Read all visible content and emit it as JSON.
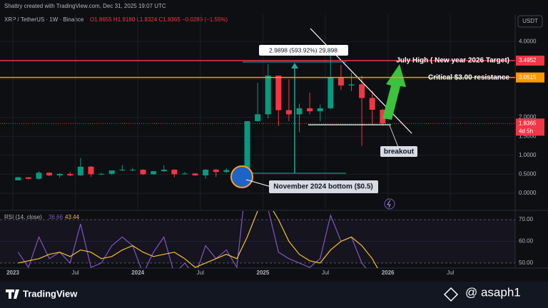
{
  "header": {
    "credit": "Shattry created with TradingView.com, Dec 31, 2025 19:07 UTC",
    "symbol": "XRP / TetherUS · 1W · Binance",
    "legend": "O1.8655 H1.9180 L1.8324 C1.8365 −0.0289 (−1.55%)",
    "currency": "USDT"
  },
  "footer": {
    "brand": "TradingView",
    "watermark": "@ asaph1"
  },
  "chart_data": {
    "type": "candlestick",
    "x": [
      "2023-01",
      "2023-02",
      "2023-03",
      "2023-04",
      "2023-05",
      "2023-06",
      "2023-07",
      "2023-08",
      "2023-09",
      "2023-10",
      "2023-11",
      "2023-12",
      "2024-01",
      "2024-02",
      "2024-03",
      "2024-04",
      "2024-05",
      "2024-06",
      "2024-07",
      "2024-08",
      "2024-09",
      "2024-10",
      "2024-11",
      "2024-12",
      "2025-01",
      "2025-02",
      "2025-03",
      "2025-04",
      "2025-05",
      "2025-06",
      "2025-07",
      "2025-08",
      "2025-09",
      "2025-10",
      "2025-11",
      "2025-12"
    ],
    "open": [
      0.34,
      0.42,
      0.38,
      0.54,
      0.47,
      0.51,
      0.47,
      0.7,
      0.5,
      0.51,
      0.6,
      0.62,
      0.62,
      0.5,
      0.58,
      0.62,
      0.5,
      0.52,
      0.47,
      0.62,
      0.56,
      0.61,
      0.52,
      1.9,
      2.08,
      3.1,
      2.19,
      2.08,
      2.24,
      2.16,
      2.24,
      3.06,
      2.84,
      2.87,
      2.51,
      2.2
    ],
    "high": [
      0.43,
      0.42,
      0.58,
      0.55,
      0.53,
      0.56,
      0.93,
      0.72,
      0.54,
      0.58,
      0.74,
      0.67,
      0.63,
      0.59,
      0.74,
      0.63,
      0.56,
      0.53,
      0.64,
      0.64,
      0.66,
      0.61,
      1.9,
      2.91,
      3.4,
      3.1,
      3.0,
      2.36,
      2.65,
      2.34,
      3.66,
      3.38,
      3.18,
      3.1,
      2.7,
      2.23
    ],
    "low": [
      0.34,
      0.36,
      0.36,
      0.45,
      0.41,
      0.45,
      0.46,
      0.43,
      0.48,
      0.48,
      0.59,
      0.58,
      0.48,
      0.49,
      0.56,
      0.42,
      0.49,
      0.46,
      0.38,
      0.43,
      0.53,
      0.5,
      0.49,
      1.89,
      1.97,
      1.77,
      1.9,
      1.61,
      2.08,
      1.9,
      2.21,
      2.72,
      2.69,
      1.25,
      1.82,
      1.78
    ],
    "close": [
      0.42,
      0.38,
      0.54,
      0.47,
      0.51,
      0.47,
      0.7,
      0.5,
      0.51,
      0.6,
      0.62,
      0.62,
      0.5,
      0.58,
      0.62,
      0.5,
      0.52,
      0.47,
      0.62,
      0.56,
      0.61,
      0.52,
      1.9,
      2.08,
      3.1,
      2.19,
      2.08,
      2.24,
      2.16,
      2.24,
      3.06,
      2.84,
      2.87,
      2.51,
      2.2,
      1.8365
    ],
    "up_color": "#089981",
    "down_color": "#f23645",
    "ylim": [
      -0.545,
      4.718
    ],
    "yticks": [
      {
        "value": 0,
        "label": "0.0000"
      },
      {
        "value": 0.5,
        "label": "0.5000"
      },
      {
        "value": 1,
        "label": "1.0000"
      },
      {
        "value": 1.5,
        "label": "1.5000"
      },
      {
        "value": 2,
        "label": "2.0000"
      },
      {
        "value": 3,
        "label": "3.0000"
      },
      {
        "value": 4,
        "label": "4.0000"
      }
    ],
    "xticks": [
      {
        "value": "2023-01",
        "label": "2023"
      },
      {
        "value": "2023-07",
        "label": "Jul"
      },
      {
        "value": "2024-01",
        "label": "2024"
      },
      {
        "value": "2024-07",
        "label": "Jul"
      },
      {
        "value": "2025-01",
        "label": "2025"
      },
      {
        "value": "2025-07",
        "label": "Jul"
      },
      {
        "value": "2026-01",
        "label": "2026"
      },
      {
        "value": "2026-07",
        "label": "Jul"
      }
    ],
    "levels": [
      {
        "value": 3.4952,
        "color": "#f23645",
        "text": "July High ( New year 2026 Target)"
      },
      {
        "value": 3.0515,
        "color": "#ff9800",
        "text": "Critical $3.00 resistance"
      }
    ],
    "last_price": 1.8365,
    "countdown": "4d 5h",
    "annotations": {
      "measure": "2.9898 (593.92%) 29,898",
      "bottom": "November 2024 bottom ($0.5)",
      "breakout": "breakout"
    },
    "rsi": {
      "label": "RSI (14, close)",
      "value_text": "36.66",
      "ma_text": "43.44",
      "color": "#7e57c2",
      "ma_color": "#f7c325",
      "values": [
        55,
        48,
        62,
        52,
        55,
        50,
        68,
        48,
        50,
        58,
        62,
        58,
        45,
        55,
        62,
        45,
        50,
        44,
        58,
        52,
        56,
        48,
        92,
        80,
        75,
        55,
        52,
        50,
        48,
        52,
        72,
        60,
        62,
        50,
        44,
        36.66
      ],
      "ma": [
        50,
        51,
        52,
        54,
        55,
        53,
        56,
        55,
        52,
        53,
        56,
        58,
        55,
        53,
        54,
        55,
        52,
        48,
        50,
        52,
        54,
        52,
        62,
        74,
        78,
        70,
        60,
        54,
        51,
        50,
        56,
        60,
        62,
        58,
        52,
        43.44
      ],
      "ylim": [
        47,
        74.3
      ],
      "yticks": [
        {
          "value": 70,
          "label": "70.00"
        },
        {
          "value": 60,
          "label": "60.00"
        },
        {
          "value": 50,
          "label": "50.00"
        }
      ]
    }
  }
}
